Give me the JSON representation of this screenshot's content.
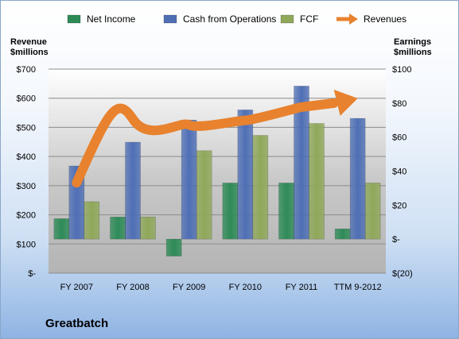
{
  "company": "Greatbatch",
  "colors": {
    "net_income": "#2e8b57",
    "cash_from_operations": "#4f6fb5",
    "fcf": "#8fa85a",
    "revenues": "#e8822e"
  },
  "chart_data": {
    "type": "bar",
    "categories": [
      "FY 2007",
      "FY 2008",
      "FY 2009",
      "FY 2010",
      "FY 2011",
      "TTM 9-2012"
    ],
    "left_axis": {
      "label": "Revenue\n$millions",
      "ticks": [
        "$-",
        "$100",
        "$200",
        "$300",
        "$400",
        "$500",
        "$600",
        "$700"
      ],
      "ylim": [
        0,
        700
      ]
    },
    "right_axis": {
      "label": "Earnings\n$millions",
      "ticks": [
        "$(20)",
        "$-",
        "$20",
        "$40",
        "$60",
        "$80",
        "$100"
      ],
      "ylim": [
        -20,
        100
      ]
    },
    "grid": true,
    "legend_position": "top",
    "series": [
      {
        "name": "Net Income",
        "type": "bar",
        "axis": "right",
        "values": [
          12,
          13,
          -10,
          33,
          33,
          6
        ]
      },
      {
        "name": "Cash from Operations",
        "type": "bar",
        "axis": "right",
        "values": [
          43,
          57,
          70,
          76,
          90,
          71
        ]
      },
      {
        "name": "FCF",
        "type": "bar",
        "axis": "right",
        "values": [
          22,
          13,
          52,
          61,
          68,
          33
        ]
      },
      {
        "name": "Revenues",
        "type": "line",
        "axis": "left",
        "values": [
          310,
          545,
          525,
          535,
          575,
          null
        ]
      }
    ]
  }
}
